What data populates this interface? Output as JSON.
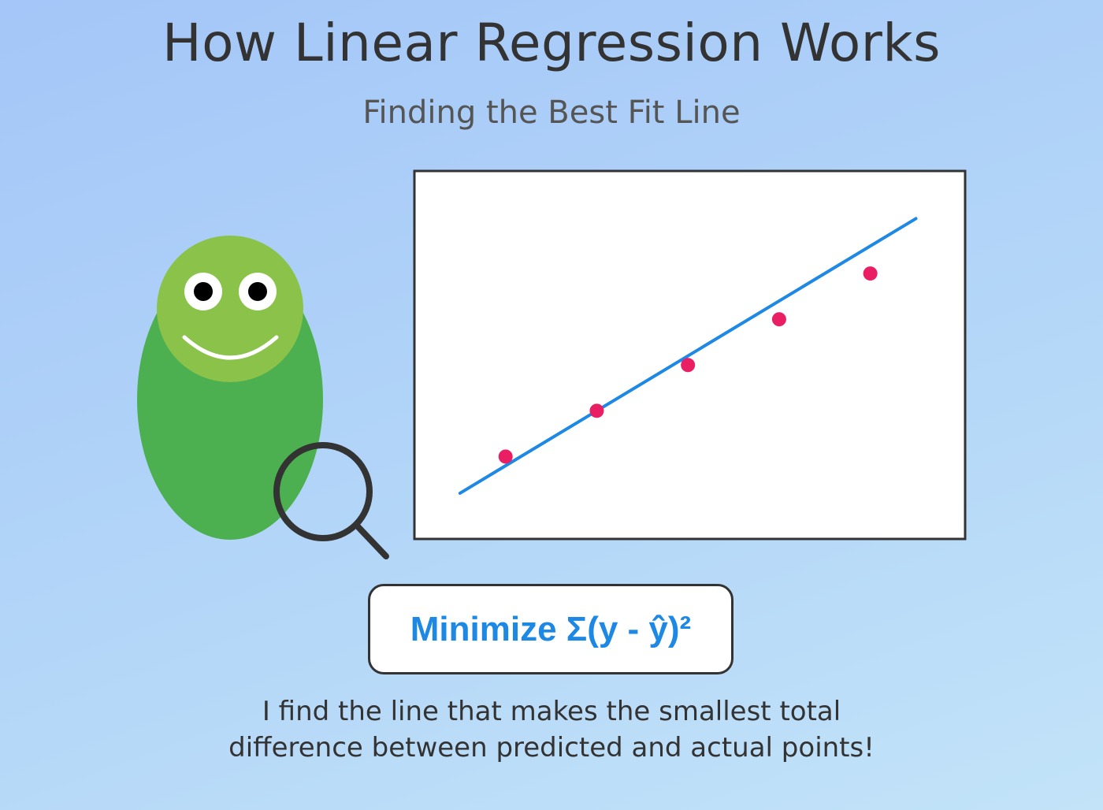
{
  "title": "How Linear Regression Works",
  "subtitle": "Finding the Best Fit Line",
  "formula": "Minimize Σ(y - ŷ)²",
  "caption": {
    "line1": "I find the line that makes the smallest total",
    "line2": "difference between predicted and actual points!"
  },
  "colors": {
    "background_top": "#a4c6f8",
    "background_bottom": "#c2e3f8",
    "character_body": "#4caf50",
    "character_head": "#8bc34a",
    "data_point": "#e91e63",
    "fit_line": "#1e88e5",
    "formula_text": "#1e88e5",
    "text": "#333333"
  },
  "icons": {
    "character": "green-blob-mascot",
    "magnifier": "magnifying-glass-icon"
  },
  "chart_data": {
    "type": "scatter",
    "points": [
      {
        "x": 1,
        "y": 1
      },
      {
        "x": 2,
        "y": 2
      },
      {
        "x": 3,
        "y": 3
      },
      {
        "x": 4,
        "y": 4
      },
      {
        "x": 5,
        "y": 5
      }
    ],
    "fit_line": {
      "x": [
        0.5,
        5.5
      ],
      "y": [
        0.2,
        6.2
      ]
    },
    "xlim": [
      0,
      6.04
    ],
    "ylim": [
      -0.8,
      7.24
    ],
    "grid": false,
    "axes_visible": false
  }
}
